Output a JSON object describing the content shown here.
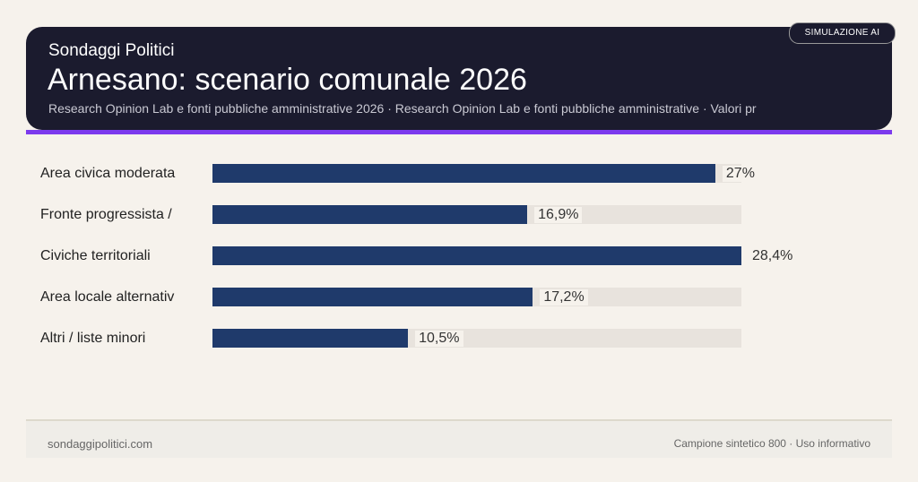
{
  "header": {
    "kicker": "Sondaggi Politici",
    "title": "Arnesano: scenario comunale 2026",
    "subtitle": "Research Opinion Lab e fonti pubbliche amministrative 2026 · Research Opinion Lab e fonti pubbliche amministrative · Valori pr",
    "badge": "SIMULAZIONE AI"
  },
  "chart_data": {
    "type": "bar",
    "orientation": "horizontal",
    "categories": [
      "Area civica moderata",
      "Fronte progressista /",
      "Civiche territoriali",
      "Area locale alternativ",
      "Altri / liste minori"
    ],
    "values": [
      27,
      16.9,
      28.4,
      17.2,
      10.5
    ],
    "labels": [
      "27%",
      "16,9%",
      "28,4%",
      "17,2%",
      "10,5%"
    ],
    "xlim": [
      0,
      28.4
    ],
    "bar_color": "#1f3a6b",
    "track_color": "#e8e3dd"
  },
  "footer": {
    "left": "sondaggipolitici.com",
    "right": "Campione sintetico 800 · Uso informativo"
  }
}
